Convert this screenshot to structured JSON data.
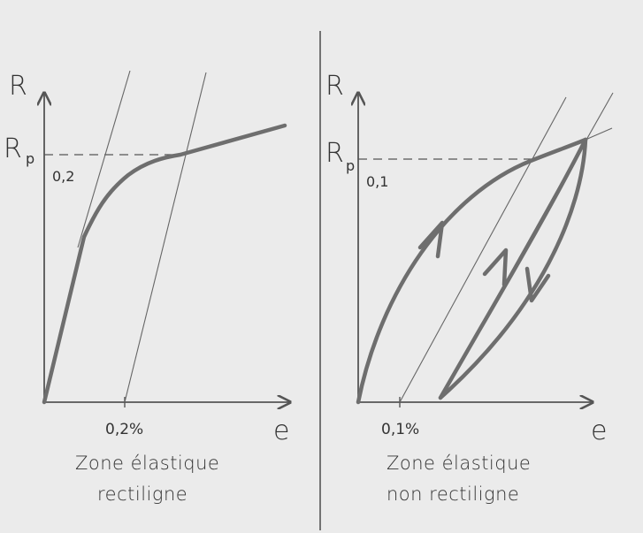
{
  "left_panel": {
    "y_axis_label": "R",
    "x_axis_label": "e",
    "yield_symbol": "R",
    "yield_sub_p": "p",
    "yield_sub_offset": "0,2",
    "x_tick_label": "0,2%",
    "caption_line1": "Zone élastique",
    "caption_line2": "rectiligne"
  },
  "right_panel": {
    "y_axis_label": "R",
    "x_axis_label": "e",
    "yield_symbol": "R",
    "yield_sub_p": "p",
    "yield_sub_offset": "0,1",
    "x_tick_label": "0,1%",
    "caption_line1": "Zone élastique",
    "caption_line2": "non rectiligne"
  },
  "colors": {
    "background": "#ebebeb",
    "ink": "#555555",
    "curve": "#6e6e6e"
  }
}
